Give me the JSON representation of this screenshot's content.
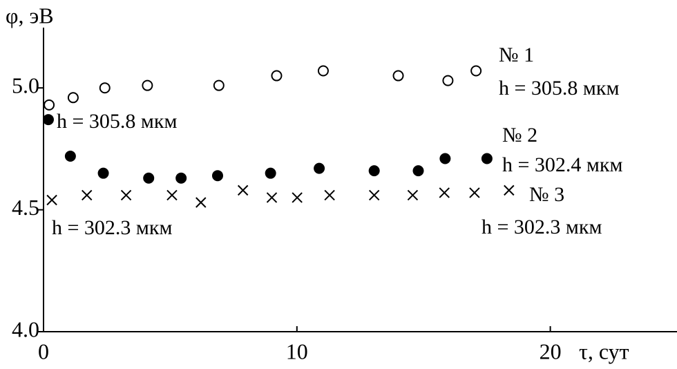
{
  "chart_data": {
    "type": "scatter",
    "xlabel": "τ, сут",
    "ylabel": "φ, эВ",
    "xlim": [
      0,
      25
    ],
    "ylim": [
      4.0,
      5.25
    ],
    "xticks": [
      0,
      10,
      20
    ],
    "yticks": [
      {
        "value": 4.0,
        "label": "4.0"
      },
      4.5,
      {
        "value": 5.0,
        "label": "5.0"
      }
    ],
    "series": [
      {
        "name": "№ 1",
        "color": "#000000",
        "marker": "open-circle",
        "x": [
          0.22,
          1.17,
          2.42,
          4.1,
          6.92,
          9.2,
          11.04,
          14.0,
          15.96,
          17.07
        ],
        "values": [
          4.93,
          4.96,
          5.0,
          5.01,
          5.01,
          5.05,
          5.07,
          5.05,
          5.03,
          5.07
        ]
      },
      {
        "name": "№ 2",
        "color": "#000000",
        "marker": "filled-circle",
        "x": [
          0.19,
          1.06,
          2.36,
          4.15,
          5.43,
          6.87,
          8.96,
          10.88,
          13.05,
          14.79,
          15.85,
          17.5
        ],
        "values": [
          4.87,
          4.72,
          4.65,
          4.63,
          4.63,
          4.64,
          4.65,
          4.67,
          4.66,
          4.66,
          4.71,
          4.71
        ]
      },
      {
        "name": "№ 3",
        "color": "#000000",
        "marker": "cross",
        "x": [
          0.33,
          1.71,
          3.26,
          5.07,
          6.21,
          7.87,
          9.01,
          10.01,
          11.29,
          13.05,
          14.57,
          15.82,
          17.01,
          18.37
        ],
        "values": [
          4.54,
          4.56,
          4.56,
          4.56,
          4.53,
          4.58,
          4.55,
          4.55,
          4.56,
          4.56,
          4.56,
          4.57,
          4.57,
          4.58
        ]
      }
    ],
    "annotations": [
      "h = 305.8 мкм",
      "h = 305.8 мкм",
      "h = 302.4 мкм",
      "h = 302.3 мкм",
      "h = 302.3 мкм"
    ]
  }
}
